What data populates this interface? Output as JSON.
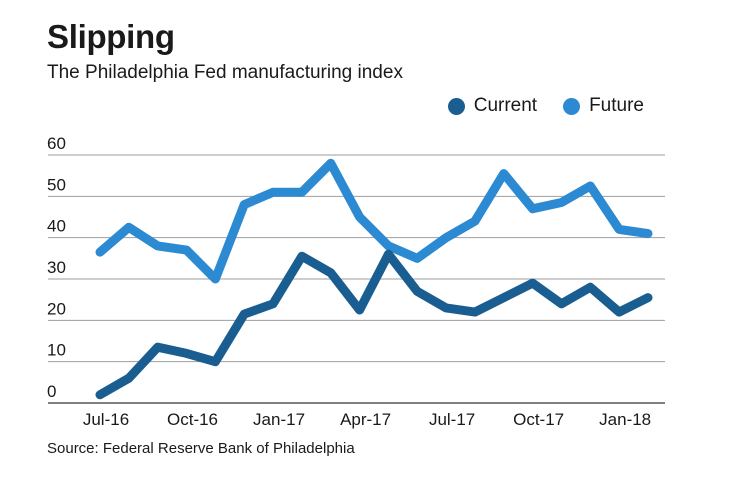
{
  "header": {
    "title": "Slipping",
    "subtitle": "The Philadelphia Fed manufacturing index"
  },
  "footer": {
    "source": "Source: Federal Reserve Bank of Philadelphia"
  },
  "colors": {
    "current": "#1a5e91",
    "future": "#2b8ad2",
    "grid": "#9e9e9e",
    "axis": "#555555"
  },
  "chart_data": {
    "type": "line",
    "title": "Slipping",
    "subtitle": "The Philadelphia Fed manufacturing index",
    "xlabel": "",
    "ylabel": "",
    "ylim": [
      0,
      60
    ],
    "yticks": [
      0,
      10,
      20,
      30,
      40,
      50,
      60
    ],
    "grid": true,
    "legend_position": "top-right",
    "x": [
      "Jul-16",
      "Aug-16",
      "Sep-16",
      "Oct-16",
      "Nov-16",
      "Dec-16",
      "Jan-17",
      "Feb-17",
      "Mar-17",
      "Apr-17",
      "May-17",
      "Jun-17",
      "Jul-17",
      "Aug-17",
      "Sep-17",
      "Oct-17",
      "Nov-17",
      "Dec-17",
      "Jan-18",
      "Feb-18"
    ],
    "xtick_labels": [
      {
        "index": 0,
        "label": "Jul-16"
      },
      {
        "index": 3,
        "label": "Oct-16"
      },
      {
        "index": 6,
        "label": "Jan-17"
      },
      {
        "index": 9,
        "label": "Apr-17"
      },
      {
        "index": 12,
        "label": "Jul-17"
      },
      {
        "index": 15,
        "label": "Oct-17"
      },
      {
        "index": 18,
        "label": "Jan-18"
      }
    ],
    "series": [
      {
        "name": "Current",
        "values": [
          2,
          6,
          13.5,
          12,
          10,
          21.5,
          24,
          35.5,
          31.5,
          22.5,
          36,
          27,
          23,
          22,
          25.5,
          29,
          24,
          28,
          22,
          25.5
        ]
      },
      {
        "name": "Future",
        "values": [
          36.5,
          42.5,
          38,
          37,
          30,
          48,
          51,
          51,
          58,
          45,
          38,
          35,
          40,
          44,
          55.5,
          47,
          48.5,
          52.5,
          42,
          41
        ]
      }
    ]
  }
}
